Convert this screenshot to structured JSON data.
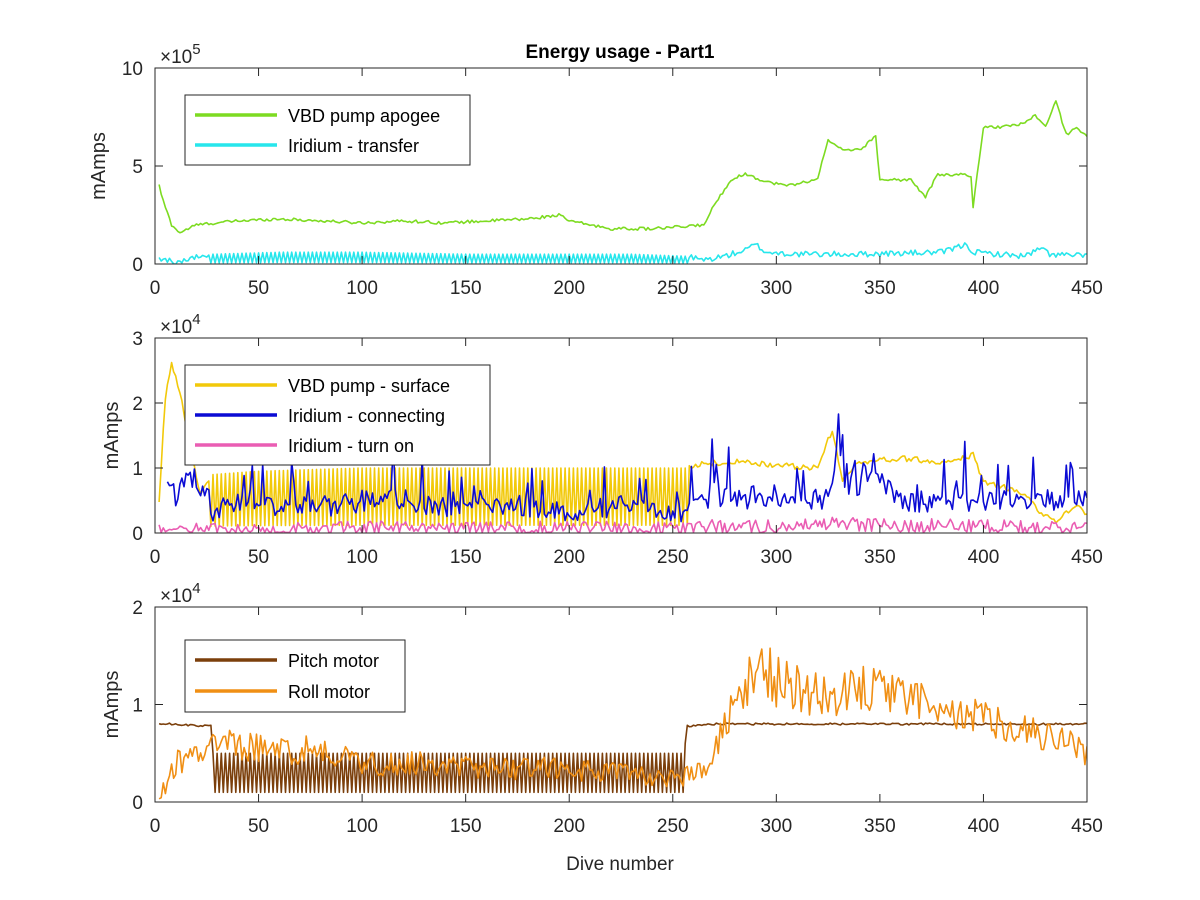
{
  "figure": {
    "title": "Energy usage - Part1",
    "xlabel": "Dive number"
  },
  "chart_data": [
    {
      "type": "line",
      "title": "Energy usage - Part1",
      "xlabel": "",
      "ylabel": "mAmps",
      "exponent_base": "×10",
      "exponent_power": "5",
      "xlim": [
        0,
        450
      ],
      "ylim": [
        0,
        10
      ],
      "xticks": [
        0,
        50,
        100,
        150,
        200,
        250,
        300,
        350,
        400,
        450
      ],
      "yticks": [
        0,
        5,
        10
      ],
      "grid": false,
      "legend_position": "top-left",
      "series": [
        {
          "name": "VBD pump apogee",
          "color": "#7ddb21",
          "style": "smooth",
          "x": [
            2,
            4,
            8,
            12,
            20,
            40,
            60,
            80,
            100,
            120,
            140,
            160,
            180,
            195,
            200,
            220,
            240,
            255,
            265,
            270,
            278,
            285,
            295,
            305,
            315,
            320,
            325,
            330,
            340,
            348,
            350,
            355,
            365,
            372,
            378,
            385,
            390,
            394,
            395,
            400,
            410,
            420,
            425,
            430,
            435,
            440,
            445,
            450
          ],
          "y": [
            4.0,
            3.2,
            2.0,
            1.6,
            2.0,
            2.2,
            2.3,
            2.2,
            2.1,
            2.2,
            2.1,
            2.2,
            2.3,
            2.5,
            2.2,
            1.8,
            1.8,
            1.9,
            2.0,
            3.0,
            4.3,
            4.6,
            4.2,
            4.0,
            4.2,
            4.4,
            6.3,
            5.9,
            5.8,
            6.5,
            4.3,
            4.3,
            4.3,
            3.4,
            4.6,
            4.5,
            4.6,
            4.5,
            2.9,
            7.0,
            7.0,
            7.2,
            7.6,
            7.0,
            8.3,
            6.6,
            7.0,
            6.5
          ]
        },
        {
          "name": "Iridium - transfer",
          "color": "#27e6ec",
          "style": "sawtooth",
          "x": [
            2,
            10,
            28,
            60,
            100,
            150,
            200,
            230,
            256,
            265,
            275,
            285,
            290,
            295,
            310,
            340,
            380,
            392,
            395,
            420,
            428,
            432,
            450
          ],
          "y": [
            0.3,
            0.1,
            0.5,
            0.6,
            0.6,
            0.5,
            0.5,
            0.5,
            0.4,
            0.2,
            0.4,
            0.7,
            1.0,
            0.6,
            0.5,
            0.5,
            0.6,
            1.0,
            0.6,
            0.4,
            0.8,
            0.5,
            0.4
          ]
        }
      ]
    },
    {
      "type": "line",
      "ylabel": "mAmps",
      "exponent_base": "×10",
      "exponent_power": "4",
      "xlim": [
        0,
        450
      ],
      "ylim": [
        0,
        3
      ],
      "xticks": [
        0,
        50,
        100,
        150,
        200,
        250,
        300,
        350,
        400,
        450
      ],
      "yticks": [
        0,
        1,
        2,
        3
      ],
      "grid": false,
      "legend_position": "top-left",
      "series": [
        {
          "name": "VBD pump - surface",
          "color": "#f2c90a",
          "style": "sawtooth",
          "x": [
            2,
            5,
            8,
            12,
            16,
            22,
            28,
            50,
            100,
            150,
            200,
            256,
            260,
            280,
            300,
            320,
            327,
            332,
            340,
            360,
            380,
            395,
            400,
            420,
            428,
            435,
            445,
            450
          ],
          "y": [
            0.5,
            2.1,
            2.6,
            2.2,
            1.4,
            0.6,
            0.9,
            0.95,
            1.0,
            1.0,
            1.0,
            1.0,
            1.05,
            1.1,
            1.05,
            1.0,
            1.6,
            0.8,
            1.1,
            1.15,
            1.1,
            1.2,
            0.8,
            0.6,
            0.3,
            0.2,
            0.4,
            0.3
          ]
        },
        {
          "name": "Iridium - connecting",
          "color": "#0b0bd4",
          "style": "noisy",
          "x": [
            6,
            10,
            15,
            20,
            28,
            40,
            60,
            80,
            100,
            120,
            140,
            160,
            180,
            200,
            220,
            240,
            255,
            260,
            270,
            280,
            290,
            300,
            310,
            320,
            325,
            330,
            335,
            345,
            352,
            360,
            380,
            400,
            420,
            440,
            450
          ],
          "y": [
            0.6,
            0.6,
            0.8,
            0.9,
            0.3,
            0.5,
            0.4,
            0.4,
            0.5,
            0.5,
            0.4,
            0.5,
            0.4,
            0.3,
            0.4,
            0.4,
            0.3,
            0.5,
            0.6,
            0.5,
            0.6,
            0.55,
            0.6,
            0.5,
            0.5,
            1.2,
            0.8,
            0.8,
            0.8,
            0.5,
            0.5,
            0.5,
            0.5,
            0.5,
            0.55
          ]
        },
        {
          "name": "Iridium - turn on",
          "color": "#ea5db3",
          "style": "noisy",
          "x": [
            2,
            10,
            20,
            30,
            100,
            200,
            256,
            265,
            300,
            330,
            350,
            400,
            450
          ],
          "y": [
            0.08,
            0.08,
            0.1,
            0.05,
            0.08,
            0.08,
            0.07,
            0.1,
            0.1,
            0.15,
            0.12,
            0.1,
            0.08
          ]
        }
      ]
    },
    {
      "type": "line",
      "ylabel": "mAmps",
      "exponent_base": "×10",
      "exponent_power": "4",
      "xlabel": "Dive number",
      "xlim": [
        0,
        450
      ],
      "ylim": [
        0,
        2
      ],
      "xticks": [
        0,
        50,
        100,
        150,
        200,
        250,
        300,
        350,
        400,
        450
      ],
      "yticks": [
        0,
        1,
        2
      ],
      "grid": false,
      "legend_position": "top-left",
      "series": [
        {
          "name": "Pitch motor",
          "color": "#7b3f0b",
          "style": "step-sawtooth",
          "x": [
            2,
            10,
            20,
            27,
            28,
            60,
            100,
            150,
            200,
            255,
            256,
            257,
            270,
            300,
            350,
            400,
            450
          ],
          "y": [
            0.8,
            0.8,
            0.78,
            0.78,
            0.3,
            0.3,
            0.3,
            0.3,
            0.3,
            0.3,
            0.6,
            0.78,
            0.8,
            0.8,
            0.8,
            0.8,
            0.8
          ]
        },
        {
          "name": "Roll motor",
          "color": "#f08f14",
          "style": "noisy",
          "x": [
            2,
            6,
            10,
            15,
            17,
            20,
            30,
            40,
            50,
            60,
            80,
            100,
            130,
            160,
            190,
            220,
            250,
            265,
            272,
            278,
            285,
            290,
            300,
            320,
            340,
            360,
            380,
            395,
            405,
            420,
            440,
            450
          ],
          "y": [
            0.05,
            0.2,
            0.4,
            0.4,
            0.7,
            0.5,
            0.55,
            0.6,
            0.55,
            0.5,
            0.55,
            0.4,
            0.4,
            0.35,
            0.35,
            0.3,
            0.25,
            0.3,
            0.6,
            0.9,
            1.2,
            1.4,
            1.25,
            1.1,
            1.15,
            1.05,
            1.0,
            0.9,
            0.8,
            0.75,
            0.65,
            0.5
          ]
        }
      ]
    }
  ]
}
